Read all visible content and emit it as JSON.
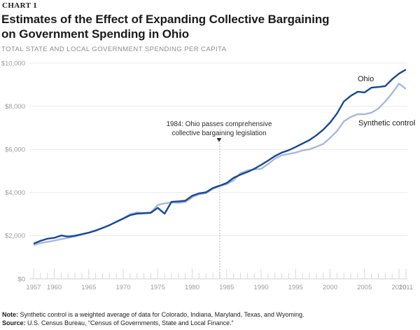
{
  "header": {
    "kicker": "CHART 1",
    "title_line1": "Estimates of the Effect of Expanding Collective Bargaining",
    "title_line2": "on Government Spending in Ohio",
    "subtitle": "TOTAL STATE AND LOCAL GOVERNMENT SPENDING PER CAPITA"
  },
  "annotation": {
    "year": 1984,
    "line1": "1984: Ohio passes comprehensive",
    "line2": "collective bargaining legislation"
  },
  "footer": {
    "note_label": "Note:",
    "note_text": " Synthetic control is a weighted average of data for Colorado, Indiana, Maryland, Texas, and Wyoming.",
    "source_label": "Source:",
    "source_text": " U.S. Census Bureau, “Census of Governments, State and Local Finance.”"
  },
  "colors": {
    "ohio_line": "#17498f",
    "synthetic_line": "#a9b7da",
    "gridline": "#e9e9e9",
    "axis": "#d2d2d2",
    "tick": "#d8d8d8",
    "axis_text": "#9b9b9b",
    "dotted_line": "#a0a0a0"
  },
  "chart_data": {
    "type": "line",
    "title": "Estimates of the Effect of Expanding Collective Bargaining on Government Spending in Ohio",
    "ylabel": "Total state and local government spending per capita",
    "xlabel": "",
    "grid": true,
    "legend_position": "inline-right-of-lines",
    "ylim": [
      0,
      10000
    ],
    "yticks": [
      0,
      2000,
      4000,
      6000,
      8000,
      10000
    ],
    "ytick_labels": [
      "$0",
      "$2,000",
      "$4,000",
      "$6,000",
      "$8,000",
      "$10,000"
    ],
    "xtick_labels": [
      1957,
      1960,
      1965,
      1970,
      1975,
      1980,
      1985,
      1990,
      1995,
      2000,
      2005,
      2010,
      2011
    ],
    "x": [
      1957,
      1958,
      1959,
      1960,
      1961,
      1962,
      1963,
      1964,
      1965,
      1966,
      1967,
      1968,
      1969,
      1970,
      1971,
      1972,
      1973,
      1974,
      1975,
      1976,
      1977,
      1978,
      1979,
      1980,
      1981,
      1982,
      1983,
      1984,
      1985,
      1986,
      1987,
      1988,
      1989,
      1990,
      1991,
      1992,
      1993,
      1994,
      1995,
      1996,
      1997,
      1998,
      1999,
      2000,
      2001,
      2002,
      2003,
      2004,
      2005,
      2006,
      2007,
      2008,
      2009,
      2010,
      2011
    ],
    "series": [
      {
        "name": "Ohio",
        "color": "#17498f",
        "values": [
          1630,
          1760,
          1860,
          1900,
          2010,
          1960,
          2000,
          2070,
          2140,
          2240,
          2360,
          2490,
          2640,
          2790,
          2950,
          3020,
          3040,
          3060,
          3290,
          3020,
          3570,
          3590,
          3620,
          3850,
          3960,
          4010,
          4210,
          4320,
          4440,
          4680,
          4830,
          4950,
          5100,
          5280,
          5480,
          5690,
          5850,
          5960,
          6110,
          6270,
          6430,
          6650,
          6910,
          7240,
          7660,
          8220,
          8480,
          8670,
          8640,
          8860,
          8890,
          8930,
          9250,
          9510,
          9700
        ]
      },
      {
        "name": "Synthetic control",
        "color": "#a9b7da",
        "values": [
          1560,
          1660,
          1710,
          1770,
          1840,
          1900,
          1960,
          2050,
          2130,
          2230,
          2350,
          2480,
          2660,
          2810,
          3000,
          3080,
          3050,
          3080,
          3420,
          3500,
          3540,
          3520,
          3560,
          3780,
          3920,
          3970,
          4170,
          4300,
          4390,
          4560,
          4900,
          5020,
          5070,
          5100,
          5320,
          5570,
          5730,
          5790,
          5850,
          5950,
          6000,
          6120,
          6250,
          6530,
          6850,
          7300,
          7500,
          7630,
          7630,
          7700,
          7890,
          8220,
          8600,
          9050,
          8800
        ]
      }
    ]
  }
}
